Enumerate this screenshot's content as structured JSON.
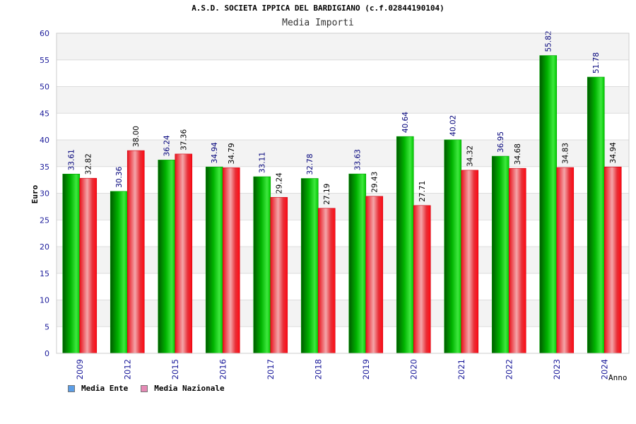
{
  "chart_data": {
    "type": "bar",
    "title": "A.S.D. SOCIETA IPPICA DEL BARDIGIANO (c.f.02844190104)",
    "subtitle": "Media Importi",
    "xlabel": "Anno",
    "ylabel": "Euro",
    "ylim": [
      0,
      60
    ],
    "yticks": [
      "0",
      "5",
      "10",
      "15",
      "20",
      "25",
      "30",
      "35",
      "40",
      "45",
      "50",
      "55",
      "60"
    ],
    "categories": [
      "2009",
      "2012",
      "2015",
      "2016",
      "2017",
      "2018",
      "2019",
      "2020",
      "2021",
      "2022",
      "2023",
      "2024"
    ],
    "series": [
      {
        "name": "Media Ente",
        "color": "#00b000",
        "legend_color": "#5c9ee6",
        "values": [
          33.61,
          30.36,
          36.24,
          34.94,
          33.11,
          32.78,
          33.63,
          40.64,
          40.02,
          36.95,
          55.82,
          51.78
        ],
        "labels": [
          "33.61",
          "30.36",
          "36.24",
          "34.94",
          "33.11",
          "32.78",
          "33.63",
          "40.64",
          "40.02",
          "36.95",
          "55.82",
          "51.78"
        ]
      },
      {
        "name": "Media Nazionale",
        "color": "#e8202a",
        "legend_color": "#e58ab5",
        "values": [
          32.82,
          38.0,
          37.36,
          34.79,
          29.24,
          27.19,
          29.43,
          27.71,
          34.32,
          34.68,
          34.83,
          34.94
        ],
        "labels": [
          "32.82",
          "38.00",
          "37.36",
          "34.79",
          "29.24",
          "27.19",
          "29.43",
          "27.71",
          "34.32",
          "34.68",
          "34.83",
          "34.94"
        ]
      }
    ],
    "grid": true,
    "legend_position": "bottom-left"
  }
}
